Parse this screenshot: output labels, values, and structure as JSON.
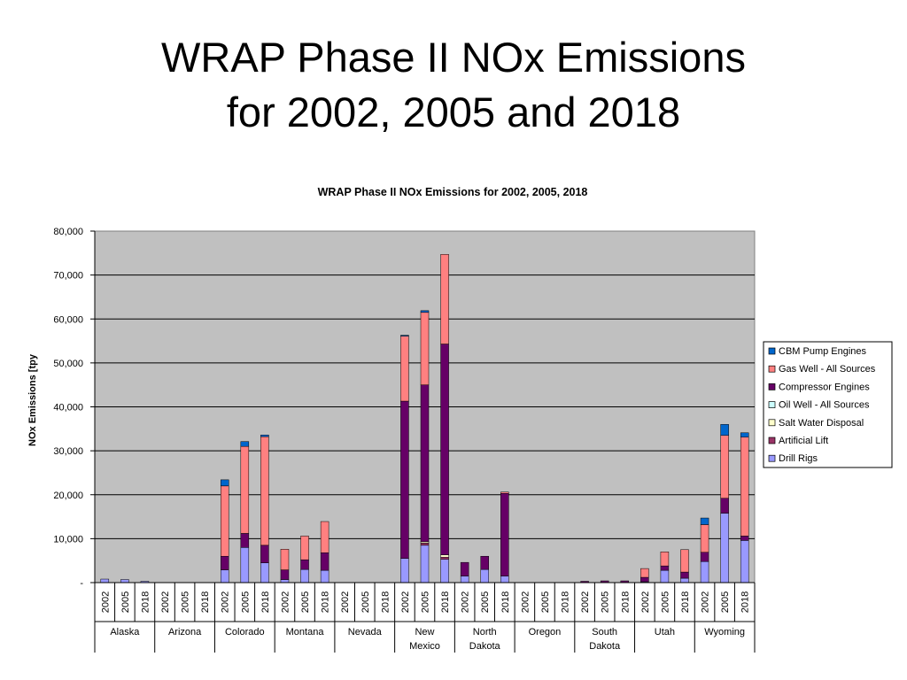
{
  "slide": {
    "title_line1": "WRAP Phase II NOx Emissions",
    "title_line2": "for 2002, 2005 and 2018"
  },
  "chart_data": {
    "type": "bar",
    "stacked": true,
    "title": "WRAP Phase II NOx Emissions for 2002, 2005, 2018",
    "ylabel": "NOx Emissions [tpy",
    "xlabel": "",
    "ylim": [
      0,
      80000
    ],
    "yticks": [
      0,
      10000,
      20000,
      30000,
      40000,
      50000,
      60000,
      70000,
      80000
    ],
    "ytick_labels": [
      "-",
      "10,000",
      "20,000",
      "30,000",
      "40,000",
      "50,000",
      "60,000",
      "70,000",
      "80,000"
    ],
    "grid": true,
    "legend_position": "right",
    "background": "#c0c0c0",
    "groups": [
      {
        "name": "Alaska",
        "label_lines": [
          "Alaska"
        ]
      },
      {
        "name": "Arizona",
        "label_lines": [
          "Arizona"
        ]
      },
      {
        "name": "Colorado",
        "label_lines": [
          "Colorado"
        ]
      },
      {
        "name": "Montana",
        "label_lines": [
          "Montana"
        ]
      },
      {
        "name": "Nevada",
        "label_lines": [
          "Nevada"
        ]
      },
      {
        "name": "New Mexico",
        "label_lines": [
          "New",
          "Mexico"
        ]
      },
      {
        "name": "North Dakota",
        "label_lines": [
          "North",
          "Dakota"
        ]
      },
      {
        "name": "Oregon",
        "label_lines": [
          "Oregon"
        ]
      },
      {
        "name": "South Dakota",
        "label_lines": [
          "South",
          "Dakota"
        ]
      },
      {
        "name": "Utah",
        "label_lines": [
          "Utah"
        ]
      },
      {
        "name": "Wyoming",
        "label_lines": [
          "Wyoming"
        ]
      }
    ],
    "years": [
      "2002",
      "2005",
      "2018"
    ],
    "series": [
      {
        "name": "Drill Rigs",
        "color": "#9999ff",
        "values": [
          [
            800,
            700,
            300
          ],
          [
            0,
            0,
            0
          ],
          [
            2900,
            8000,
            4500
          ],
          [
            700,
            3000,
            2800
          ],
          [
            0,
            0,
            0
          ],
          [
            5500,
            8500,
            5300
          ],
          [
            1500,
            3000,
            1500
          ],
          [
            0,
            0,
            0
          ],
          [
            0,
            0,
            0
          ],
          [
            200,
            2800,
            1000
          ],
          [
            4800,
            15800,
            9600
          ]
        ]
      },
      {
        "name": "Artificial Lift",
        "color": "#993366",
        "values": [
          [
            0,
            0,
            0
          ],
          [
            0,
            0,
            0
          ],
          [
            0,
            0,
            0
          ],
          [
            0,
            0,
            0
          ],
          [
            0,
            0,
            0
          ],
          [
            0,
            500,
            500
          ],
          [
            0,
            0,
            0
          ],
          [
            0,
            0,
            0
          ],
          [
            0,
            0,
            0
          ],
          [
            0,
            0,
            0
          ],
          [
            0,
            0,
            0
          ]
        ]
      },
      {
        "name": "Salt Water Disposal",
        "color": "#ffffcc",
        "values": [
          [
            0,
            0,
            0
          ],
          [
            0,
            0,
            0
          ],
          [
            0,
            0,
            0
          ],
          [
            0,
            0,
            0
          ],
          [
            0,
            0,
            0
          ],
          [
            0,
            300,
            500
          ],
          [
            0,
            0,
            0
          ],
          [
            0,
            0,
            0
          ],
          [
            0,
            0,
            0
          ],
          [
            0,
            0,
            0
          ],
          [
            0,
            0,
            0
          ]
        ]
      },
      {
        "name": "Oil Well - All Sources",
        "color": "#ccffff",
        "values": [
          [
            0,
            0,
            0
          ],
          [
            0,
            0,
            0
          ],
          [
            0,
            0,
            0
          ],
          [
            0,
            0,
            0
          ],
          [
            0,
            0,
            0
          ],
          [
            0,
            0,
            0
          ],
          [
            0,
            0,
            0
          ],
          [
            0,
            0,
            0
          ],
          [
            0,
            0,
            0
          ],
          [
            0,
            0,
            0
          ],
          [
            0,
            0,
            0
          ]
        ]
      },
      {
        "name": "Compressor Engines",
        "color": "#660066",
        "values": [
          [
            0,
            0,
            0
          ],
          [
            0,
            0,
            0
          ],
          [
            3100,
            3200,
            4000
          ],
          [
            2200,
            2200,
            4000
          ],
          [
            0,
            0,
            0
          ],
          [
            35800,
            35700,
            48000
          ],
          [
            3100,
            3000,
            18800
          ],
          [
            0,
            0,
            0
          ],
          [
            300,
            400,
            400
          ],
          [
            1000,
            1000,
            1400
          ],
          [
            2100,
            3400,
            1000
          ]
        ]
      },
      {
        "name": "Gas Well - All Sources",
        "color": "#ff8080",
        "values": [
          [
            0,
            0,
            0
          ],
          [
            0,
            0,
            0
          ],
          [
            16000,
            19800,
            24700
          ],
          [
            4700,
            5400,
            7100
          ],
          [
            0,
            0,
            0
          ],
          [
            14800,
            16500,
            20400
          ],
          [
            0,
            0,
            300
          ],
          [
            0,
            0,
            0
          ],
          [
            0,
            0,
            0
          ],
          [
            2000,
            3200,
            5100
          ],
          [
            6300,
            14300,
            22500
          ]
        ]
      },
      {
        "name": "CBM Pump Engines",
        "color": "#0066cc",
        "values": [
          [
            0,
            0,
            0
          ],
          [
            0,
            0,
            0
          ],
          [
            1400,
            1100,
            400
          ],
          [
            0,
            0,
            0
          ],
          [
            0,
            0,
            0
          ],
          [
            200,
            400,
            0
          ],
          [
            0,
            0,
            0
          ],
          [
            0,
            0,
            0
          ],
          [
            0,
            0,
            0
          ],
          [
            0,
            0,
            0
          ],
          [
            1500,
            2500,
            1000
          ]
        ]
      }
    ]
  }
}
